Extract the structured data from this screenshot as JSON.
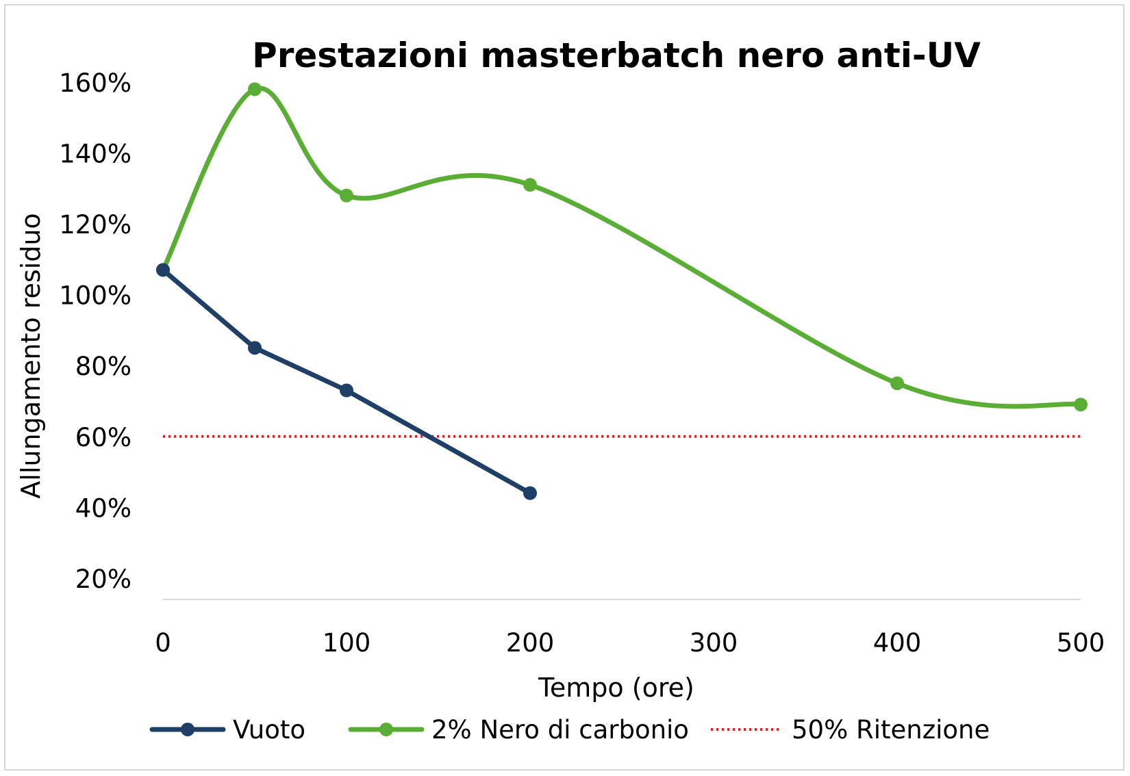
{
  "chart_data": {
    "type": "line",
    "title": "Prestazioni masterbatch nero anti-UV",
    "xlabel": "Tempo (ore)",
    "ylabel": "Allungamento residuo",
    "xlim": [
      0,
      500
    ],
    "ylim": [
      14,
      160
    ],
    "x_ticks": [
      0,
      100,
      200,
      300,
      400,
      500
    ],
    "x_tick_labels": [
      "0",
      "100",
      "200",
      "300",
      "400",
      "500"
    ],
    "y_ticks": [
      20,
      40,
      60,
      80,
      100,
      120,
      140,
      160
    ],
    "y_tick_labels": [
      "20%",
      "40%",
      "60%",
      "80%",
      "100%",
      "120%",
      "140%",
      "160%"
    ],
    "legend_position": "bottom",
    "series": [
      {
        "name": "Vuoto",
        "color": "#1f3f66",
        "smooth": false,
        "style": "solid-markers",
        "x": [
          0,
          50,
          100,
          200
        ],
        "y": [
          107,
          85,
          73,
          44
        ]
      },
      {
        "name": "2% Nero di carbonio",
        "color": "#5aad35",
        "smooth": true,
        "style": "solid-markers",
        "x": [
          0,
          50,
          100,
          200,
          400,
          500
        ],
        "y": [
          107,
          158,
          128,
          131,
          75,
          69
        ]
      },
      {
        "name": "50% Ritenzione",
        "color": "#d9262c",
        "smooth": false,
        "style": "dotted",
        "x": [
          0,
          500
        ],
        "y": [
          60,
          60
        ]
      }
    ]
  }
}
